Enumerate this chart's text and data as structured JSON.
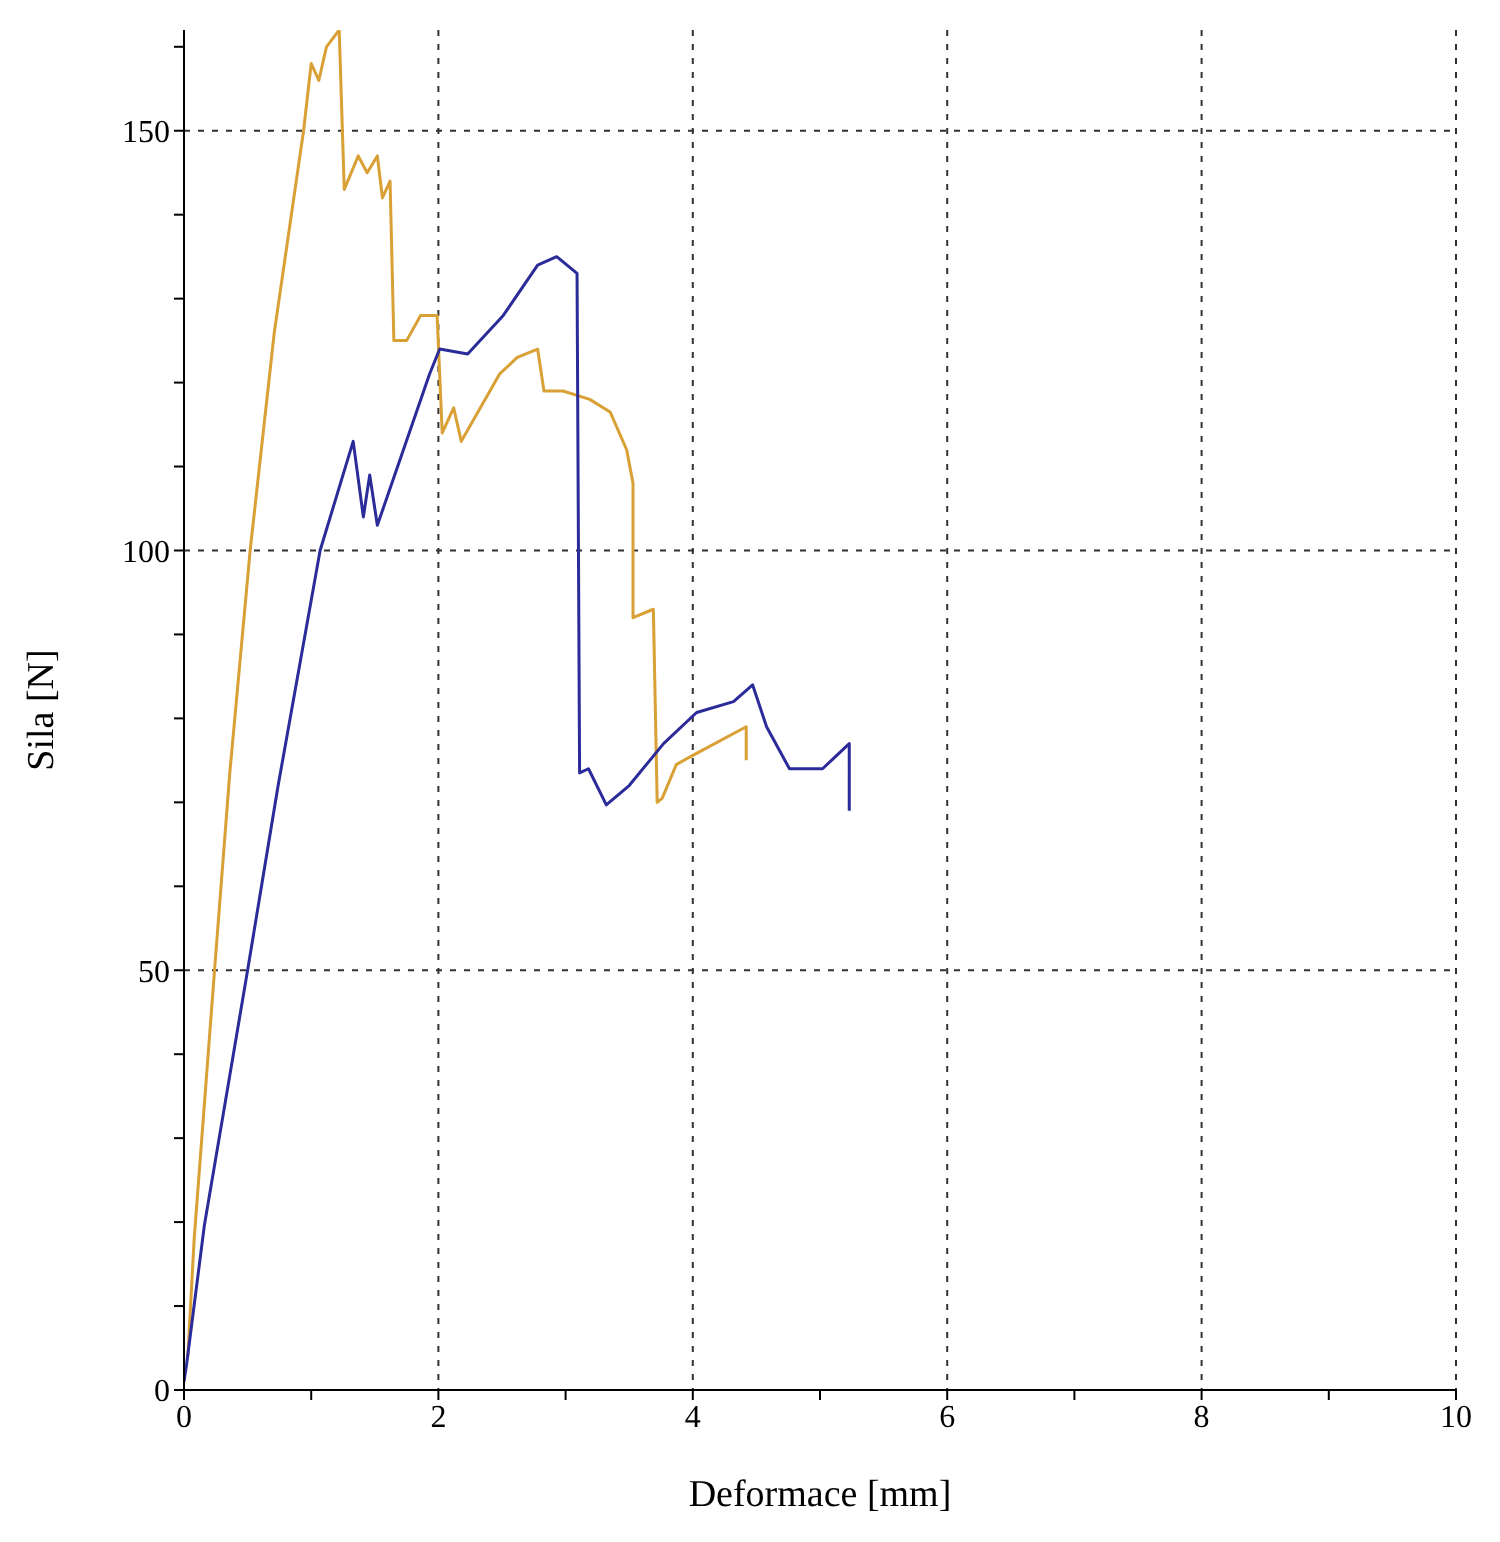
{
  "chart_data": {
    "type": "line",
    "xlabel": "Deformace [mm]",
    "ylabel": "Sila [N]",
    "xlim": [
      0,
      10
    ],
    "ylim": [
      0,
      162
    ],
    "xticks": [
      0,
      {
        "value": 1,
        "label": null
      },
      2,
      {
        "value": 3,
        "label": null
      },
      4,
      {
        "value": 5,
        "label": null
      },
      6,
      {
        "value": 7,
        "label": null
      },
      8,
      {
        "value": 9,
        "label": null
      },
      10
    ],
    "yticks": [
      0,
      {
        "value": 10,
        "label": null
      },
      {
        "value": 20,
        "label": null
      },
      {
        "value": 30,
        "label": null
      },
      {
        "value": 40,
        "label": null
      },
      50,
      {
        "value": 60,
        "label": null
      },
      {
        "value": 70,
        "label": null
      },
      {
        "value": 80,
        "label": null
      },
      {
        "value": 90,
        "label": null
      },
      100,
      {
        "value": 110,
        "label": null
      },
      {
        "value": 120,
        "label": null
      },
      {
        "value": 130,
        "label": null
      },
      {
        "value": 140,
        "label": null
      },
      150,
      {
        "value": 160,
        "label": null
      }
    ],
    "grid": true,
    "marker": "none",
    "line_style": "solid",
    "series": [
      {
        "color": "#d9a036",
        "x": [
          0.03,
          0.08,
          0.24,
          0.36,
          0.52,
          0.71,
          0.94,
          1.0,
          1.06,
          1.12,
          1.22,
          1.26,
          1.37,
          1.44,
          1.52,
          1.56,
          1.62,
          1.65,
          1.75,
          1.86,
          1.99,
          2.03,
          2.12,
          2.18,
          2.48,
          2.62,
          2.78,
          2.83,
          2.98,
          3.19,
          3.35,
          3.48,
          3.53,
          3.53,
          3.69,
          3.72,
          3.76,
          3.87,
          4.0,
          4.42,
          4.42
        ],
        "values": [
          4,
          18,
          50,
          73.5,
          100,
          126,
          150,
          158,
          156,
          160,
          162,
          143,
          147,
          145,
          147,
          142,
          144,
          125,
          125,
          128,
          128,
          114,
          117,
          113,
          121,
          123,
          124,
          119,
          119,
          118,
          116.5,
          112,
          108,
          92,
          93,
          70,
          70.5,
          74.5,
          75.6,
          79,
          75
        ]
      },
      {
        "color": "#2b2b9a",
        "x": [
          0,
          0.02,
          0.16,
          0.31,
          0.5,
          0.74,
          1.07,
          1.33,
          1.41,
          1.46,
          1.52,
          1.93,
          2.01,
          2.23,
          2.51,
          2.78,
          2.93,
          3.09,
          3.11,
          3.18,
          3.32,
          3.5,
          3.77,
          4.03,
          4.32,
          4.47,
          4.58,
          4.76,
          5.02,
          5.23,
          5.23
        ],
        "values": [
          1,
          3,
          19.6,
          33,
          50,
          72,
          100,
          113,
          104,
          109,
          103,
          121,
          124,
          123.4,
          128,
          134,
          135,
          133,
          73.5,
          74,
          69.7,
          72,
          77,
          80.7,
          82,
          84,
          79,
          74,
          74,
          77,
          69
        ]
      }
    ]
  }
}
